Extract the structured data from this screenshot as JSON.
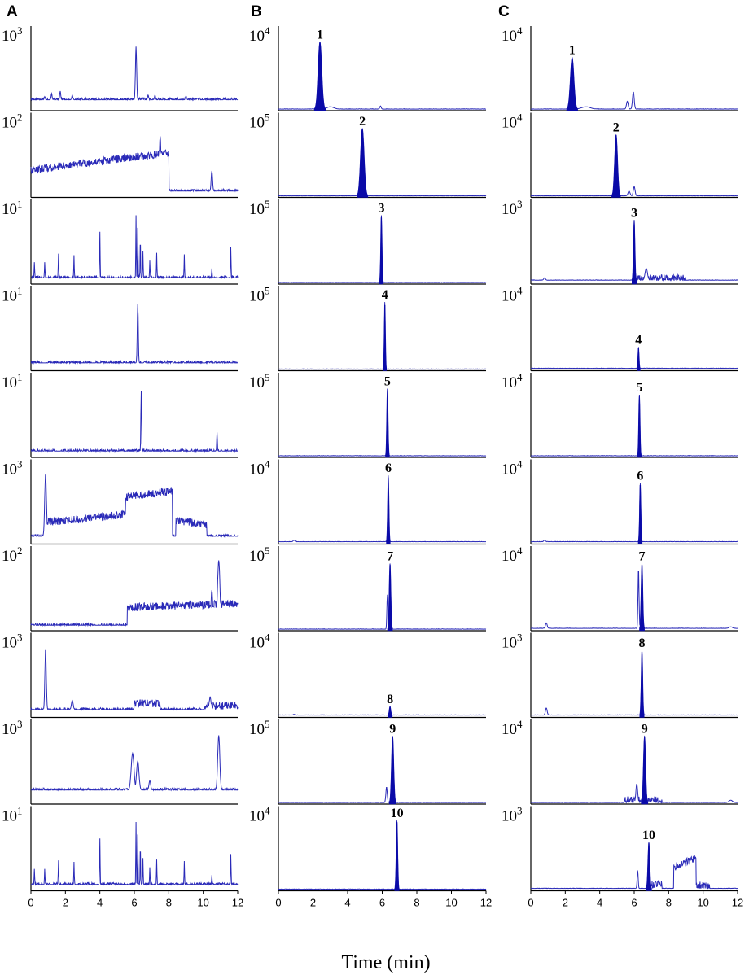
{
  "panel_labels": [
    "A",
    "B",
    "C"
  ],
  "x_axis_title": "Time (min)",
  "chart_data": {
    "type": "line",
    "xlabel": "Time (min)",
    "xlim": [
      0,
      12
    ],
    "x_ticks": [
      "0",
      "2",
      "4",
      "6",
      "8",
      "10",
      "12"
    ],
    "colors": {
      "trace": "#2a2ab8",
      "fill": "#0a0aa8",
      "axis": "#000000"
    },
    "columns": [
      {
        "label": "A",
        "rows": [
          {
            "exponent": "3",
            "baseline": 0.14,
            "peaks": [
              {
                "t": 6.1,
                "h": 0.82,
                "w": 0.035
              },
              {
                "t": 1.2,
                "h": 0.22,
                "w": 0.03
              },
              {
                "t": 1.7,
                "h": 0.25,
                "w": 0.03
              },
              {
                "t": 2.4,
                "h": 0.2,
                "w": 0.03
              },
              {
                "t": 0.8,
                "h": 0.18,
                "w": 0.03
              },
              {
                "t": 6.8,
                "h": 0.2,
                "w": 0.03
              },
              {
                "t": 7.2,
                "h": 0.2,
                "w": 0.03
              },
              {
                "t": 9.0,
                "h": 0.19,
                "w": 0.03
              }
            ]
          },
          {
            "exponent": "2",
            "baseline": 0.08,
            "regions": [
              {
                "a": 0,
                "b": 8,
                "level": 0.35,
                "rise": 0.22
              }
            ],
            "peaks": [
              {
                "t": 7.5,
                "h": 0.78,
                "w": 0.05
              },
              {
                "t": 0.9,
                "h": 0.42,
                "w": 0.04
              },
              {
                "t": 10.5,
                "h": 0.34,
                "w": 0.04
              },
              {
                "t": 1.4,
                "h": 0.32,
                "w": 0.05
              }
            ]
          },
          {
            "exponent": "1",
            "baseline": 0.08,
            "peaks": [
              {
                "t": 0.2,
                "h": 0.28,
                "w": 0.015
              },
              {
                "t": 0.8,
                "h": 0.28,
                "w": 0.015
              },
              {
                "t": 1.6,
                "h": 0.39,
                "w": 0.015
              },
              {
                "t": 2.5,
                "h": 0.37,
                "w": 0.015
              },
              {
                "t": 4.0,
                "h": 0.67,
                "w": 0.015
              },
              {
                "t": 6.1,
                "h": 0.88,
                "w": 0.015
              },
              {
                "t": 6.2,
                "h": 0.72,
                "w": 0.015
              },
              {
                "t": 6.35,
                "h": 0.6,
                "w": 0.015
              },
              {
                "t": 6.5,
                "h": 0.42,
                "w": 0.015
              },
              {
                "t": 6.9,
                "h": 0.3,
                "w": 0.015
              },
              {
                "t": 7.3,
                "h": 0.4,
                "w": 0.015
              },
              {
                "t": 8.9,
                "h": 0.38,
                "w": 0.015
              },
              {
                "t": 10.5,
                "h": 0.2,
                "w": 0.015
              },
              {
                "t": 11.6,
                "h": 0.47,
                "w": 0.015
              }
            ]
          },
          {
            "exponent": "1",
            "baseline": 0.1,
            "peaks": [
              {
                "t": 6.2,
                "h": 0.85,
                "w": 0.03
              },
              {
                "t": 6.6,
                "h": 0.12,
                "w": 0.03
              },
              {
                "t": 10.3,
                "h": 0.12,
                "w": 0.03
              }
            ]
          },
          {
            "exponent": "1",
            "baseline": 0.08,
            "peaks": [
              {
                "t": 6.4,
                "h": 0.85,
                "w": 0.02
              },
              {
                "t": 10.8,
                "h": 0.32,
                "w": 0.02
              }
            ]
          },
          {
            "exponent": "3",
            "baseline": 0.1,
            "regions": [
              {
                "a": 0.9,
                "b": 5.5,
                "level": 0.28,
                "rise": 0.1
              },
              {
                "a": 5.5,
                "b": 8.2,
                "level": 0.6,
                "rise": 0.08
              },
              {
                "a": 8.4,
                "b": 10.2,
                "level": 0.3,
                "rise": -0.05
              }
            ],
            "peaks": [
              {
                "t": 0.85,
                "h": 0.9,
                "w": 0.05
              }
            ]
          },
          {
            "exponent": "2",
            "baseline": 0.07,
            "regions": [
              {
                "a": 5.6,
                "b": 12,
                "level": 0.3,
                "rise": 0.05
              }
            ],
            "peaks": [
              {
                "t": 10.9,
                "h": 0.9,
                "w": 0.07
              },
              {
                "t": 10.5,
                "h": 0.52,
                "w": 0.05
              }
            ]
          },
          {
            "exponent": "3",
            "baseline": 0.1,
            "regions": [
              {
                "a": 6.0,
                "b": 7.5,
                "level": 0.18,
                "rise": 0.0
              },
              {
                "a": 10.1,
                "b": 12,
                "level": 0.15,
                "rise": 0.0
              }
            ],
            "peaks": [
              {
                "t": 0.85,
                "h": 0.88,
                "w": 0.04
              },
              {
                "t": 2.4,
                "h": 0.22,
                "w": 0.05
              },
              {
                "t": 10.4,
                "h": 0.26,
                "w": 0.05
              }
            ]
          },
          {
            "exponent": "3",
            "baseline": 0.18,
            "peaks": [
              {
                "t": 5.9,
                "h": 0.65,
                "w": 0.08
              },
              {
                "t": 6.2,
                "h": 0.55,
                "w": 0.07
              },
              {
                "t": 6.9,
                "h": 0.3,
                "w": 0.05
              },
              {
                "t": 10.9,
                "h": 0.88,
                "w": 0.06
              }
            ]
          },
          {
            "exponent": "1",
            "baseline": 0.08,
            "peaks": [
              {
                "t": 0.2,
                "h": 0.28,
                "w": 0.015
              },
              {
                "t": 0.8,
                "h": 0.28,
                "w": 0.015
              },
              {
                "t": 1.6,
                "h": 0.39,
                "w": 0.015
              },
              {
                "t": 2.5,
                "h": 0.37,
                "w": 0.015
              },
              {
                "t": 4.0,
                "h": 0.67,
                "w": 0.015
              },
              {
                "t": 6.1,
                "h": 0.88,
                "w": 0.015
              },
              {
                "t": 6.2,
                "h": 0.72,
                "w": 0.015
              },
              {
                "t": 6.35,
                "h": 0.6,
                "w": 0.015
              },
              {
                "t": 6.5,
                "h": 0.42,
                "w": 0.015
              },
              {
                "t": 6.9,
                "h": 0.3,
                "w": 0.015
              },
              {
                "t": 7.3,
                "h": 0.4,
                "w": 0.015
              },
              {
                "t": 8.9,
                "h": 0.38,
                "w": 0.015
              },
              {
                "t": 10.5,
                "h": 0.2,
                "w": 0.015
              },
              {
                "t": 11.6,
                "h": 0.47,
                "w": 0.015
              }
            ]
          }
        ]
      },
      {
        "label": "B",
        "rows": [
          {
            "exponent": "4",
            "baseline": 0.02,
            "peak_label": "1",
            "filled": {
              "t": 2.4,
              "h": 0.88,
              "w": 0.1
            },
            "peaks": [
              {
                "t": 3.0,
                "h": 0.05,
                "w": 0.2
              },
              {
                "t": 5.9,
                "h": 0.06,
                "w": 0.04
              }
            ]
          },
          {
            "exponent": "5",
            "baseline": 0.02,
            "peak_label": "2",
            "filled": {
              "t": 4.85,
              "h": 0.88,
              "w": 0.1
            },
            "peaks": []
          },
          {
            "exponent": "5",
            "baseline": 0.02,
            "peak_label": "3",
            "filled": {
              "t": 5.95,
              "h": 0.88,
              "w": 0.035
            },
            "peaks": []
          },
          {
            "exponent": "5",
            "baseline": 0.02,
            "peak_label": "4",
            "filled": {
              "t": 6.15,
              "h": 0.88,
              "w": 0.03
            },
            "peaks": []
          },
          {
            "exponent": "5",
            "baseline": 0.02,
            "peak_label": "5",
            "filled": {
              "t": 6.3,
              "h": 0.88,
              "w": 0.035
            },
            "peaks": []
          },
          {
            "exponent": "4",
            "baseline": 0.03,
            "peak_label": "6",
            "filled": {
              "t": 6.35,
              "h": 0.88,
              "w": 0.035
            },
            "peaks": [
              {
                "t": 0.9,
                "h": 0.05,
                "w": 0.05
              }
            ]
          },
          {
            "exponent": "5",
            "baseline": 0.02,
            "peak_label": "7",
            "filled": {
              "t": 6.45,
              "h": 0.86,
              "w": 0.045
            },
            "peaks": [
              {
                "t": 6.3,
                "h": 0.46,
                "w": 0.03
              }
            ]
          },
          {
            "exponent": "4",
            "baseline": 0.03,
            "peak_label": "8",
            "filled": {
              "t": 6.45,
              "h": 0.14,
              "w": 0.04
            },
            "peaks": [
              {
                "t": 0.9,
                "h": 0.04,
                "w": 0.05
              }
            ]
          },
          {
            "exponent": "5",
            "baseline": 0.02,
            "peak_label": "9",
            "filled": {
              "t": 6.6,
              "h": 0.87,
              "w": 0.06
            },
            "peaks": [
              {
                "t": 6.25,
                "h": 0.22,
                "w": 0.04
              }
            ]
          },
          {
            "exponent": "4",
            "baseline": 0.02,
            "peak_label": "10",
            "filled": {
              "t": 6.85,
              "h": 0.9,
              "w": 0.04
            },
            "peaks": []
          }
        ]
      },
      {
        "label": "C",
        "rows": [
          {
            "exponent": "4",
            "baseline": 0.02,
            "peak_label": "1",
            "filled": {
              "t": 2.4,
              "h": 0.68,
              "w": 0.1
            },
            "peaks": [
              {
                "t": 3.2,
                "h": 0.05,
                "w": 0.25
              },
              {
                "t": 5.6,
                "h": 0.12,
                "w": 0.05
              },
              {
                "t": 5.95,
                "h": 0.24,
                "w": 0.05
              }
            ]
          },
          {
            "exponent": "4",
            "baseline": 0.02,
            "peak_label": "2",
            "filled": {
              "t": 4.95,
              "h": 0.8,
              "w": 0.08
            },
            "peaks": [
              {
                "t": 5.7,
                "h": 0.08,
                "w": 0.06
              },
              {
                "t": 6.0,
                "h": 0.14,
                "w": 0.05
              }
            ]
          },
          {
            "exponent": "3",
            "baseline": 0.05,
            "peak_label": "3",
            "filled": {
              "t": 6.0,
              "h": 0.82,
              "w": 0.04
            },
            "regions": [
              {
                "a": 6.1,
                "b": 9.0,
                "level": 0.07,
                "rise": 0.0
              }
            ],
            "peaks": [
              {
                "t": 6.7,
                "h": 0.2,
                "w": 0.07
              },
              {
                "t": 0.8,
                "h": 0.08,
                "w": 0.05
              }
            ]
          },
          {
            "exponent": "4",
            "baseline": 0.03,
            "peak_label": "4",
            "filled": {
              "t": 6.25,
              "h": 0.3,
              "w": 0.03
            },
            "peaks": []
          },
          {
            "exponent": "4",
            "baseline": 0.02,
            "peak_label": "5",
            "filled": {
              "t": 6.3,
              "h": 0.8,
              "w": 0.035
            },
            "peaks": []
          },
          {
            "exponent": "4",
            "baseline": 0.03,
            "peak_label": "6",
            "filled": {
              "t": 6.35,
              "h": 0.78,
              "w": 0.035
            },
            "peaks": [
              {
                "t": 0.8,
                "h": 0.05,
                "w": 0.05
              }
            ]
          },
          {
            "exponent": "4",
            "baseline": 0.03,
            "peak_label": "7",
            "filled": {
              "t": 6.45,
              "h": 0.86,
              "w": 0.045
            },
            "peaks": [
              {
                "t": 6.25,
                "h": 0.8,
                "w": 0.03
              },
              {
                "t": 0.9,
                "h": 0.1,
                "w": 0.05
              },
              {
                "t": 11.6,
                "h": 0.05,
                "w": 0.1
              }
            ]
          },
          {
            "exponent": "3",
            "baseline": 0.03,
            "peak_label": "8",
            "filled": {
              "t": 6.45,
              "h": 0.86,
              "w": 0.04
            },
            "peaks": [
              {
                "t": 0.9,
                "h": 0.12,
                "w": 0.05
              }
            ]
          },
          {
            "exponent": "4",
            "baseline": 0.02,
            "peak_label": "9",
            "filled": {
              "t": 6.6,
              "h": 0.87,
              "w": 0.06
            },
            "regions": [
              {
                "a": 5.4,
                "b": 7.6,
                "level": 0.05,
                "rise": 0.0
              }
            ],
            "peaks": [
              {
                "t": 6.15,
                "h": 0.26,
                "w": 0.05
              },
              {
                "t": 11.6,
                "h": 0.05,
                "w": 0.1
              }
            ]
          },
          {
            "exponent": "3",
            "baseline": 0.03,
            "peak_label": "10",
            "filled": {
              "t": 6.85,
              "h": 0.62,
              "w": 0.05
            },
            "regions": [
              {
                "a": 7.0,
                "b": 7.6,
                "level": 0.08,
                "rise": 0.0
              },
              {
                "a": 8.3,
                "b": 9.6,
                "level": 0.3,
                "rise": 0.12
              },
              {
                "a": 9.6,
                "b": 10.4,
                "level": 0.08,
                "rise": -0.04
              }
            ],
            "peaks": [
              {
                "t": 6.2,
                "h": 0.26,
                "w": 0.03
              }
            ]
          }
        ]
      }
    ]
  }
}
